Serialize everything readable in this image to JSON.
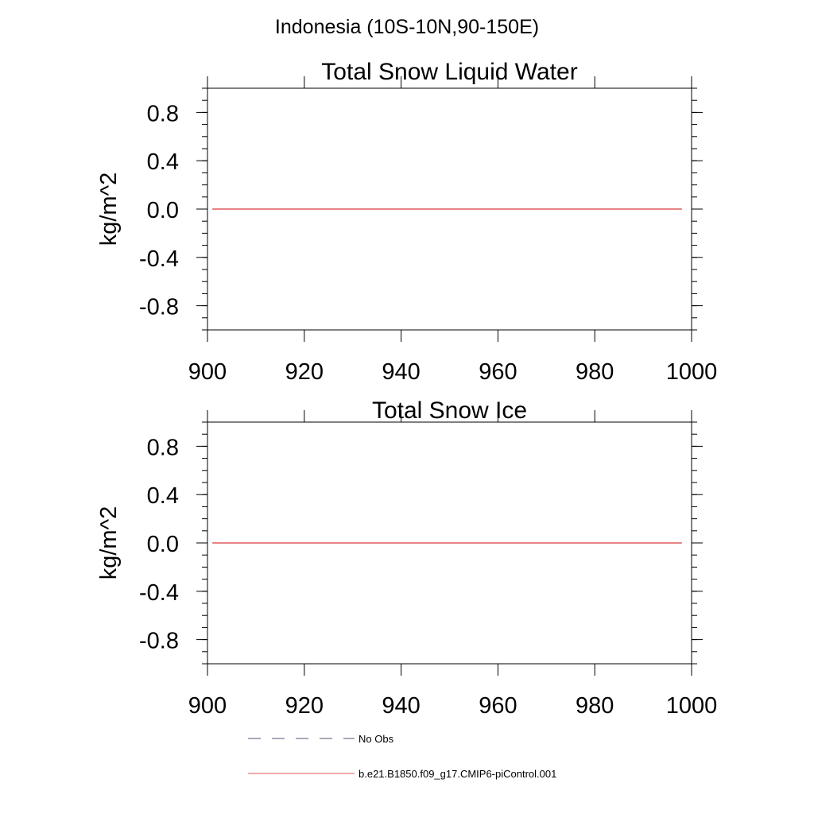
{
  "suptitle": "Indonesia (10S-10N,90-150E)",
  "chart_data": [
    {
      "type": "line",
      "title": "Total Snow Liquid Water",
      "ylabel": "kg/m^2",
      "xlabel": "",
      "xlim": [
        900,
        1000
      ],
      "ylim": [
        -1,
        1
      ],
      "xticks": [
        "900",
        "920",
        "940",
        "960",
        "980",
        "1000"
      ],
      "yticks": [
        "0.8",
        "0.4",
        "0.0",
        "-0.4",
        "-0.8"
      ],
      "grid": false,
      "series": [
        {
          "name": "b.e21.B1850.f09_g17.CMIP6-piControl.001",
          "color": "#e05a5a",
          "dash": "solid",
          "x": [
            901,
            998
          ],
          "y": [
            0.0,
            0.0
          ]
        }
      ]
    },
    {
      "type": "line",
      "title": "Total Snow Ice",
      "ylabel": "kg/m^2",
      "xlabel": "",
      "xlim": [
        900,
        1000
      ],
      "ylim": [
        -1,
        1
      ],
      "xticks": [
        "900",
        "920",
        "940",
        "960",
        "980",
        "1000"
      ],
      "yticks": [
        "0.8",
        "0.4",
        "0.0",
        "-0.4",
        "-0.8"
      ],
      "grid": false,
      "series": [
        {
          "name": "b.e21.B1850.f09_g17.CMIP6-piControl.001",
          "color": "#e05a5a",
          "dash": "solid",
          "x": [
            901,
            998
          ],
          "y": [
            0.0,
            0.0
          ]
        }
      ]
    }
  ],
  "legend": {
    "placement": "bottom-center",
    "entries": [
      {
        "label": "No Obs",
        "color": "#555577",
        "dash": "dashed"
      },
      {
        "label": "b.e21.B1850.f09_g17.CMIP6-piControl.001",
        "color": "#e05a5a",
        "dash": "solid"
      }
    ]
  }
}
